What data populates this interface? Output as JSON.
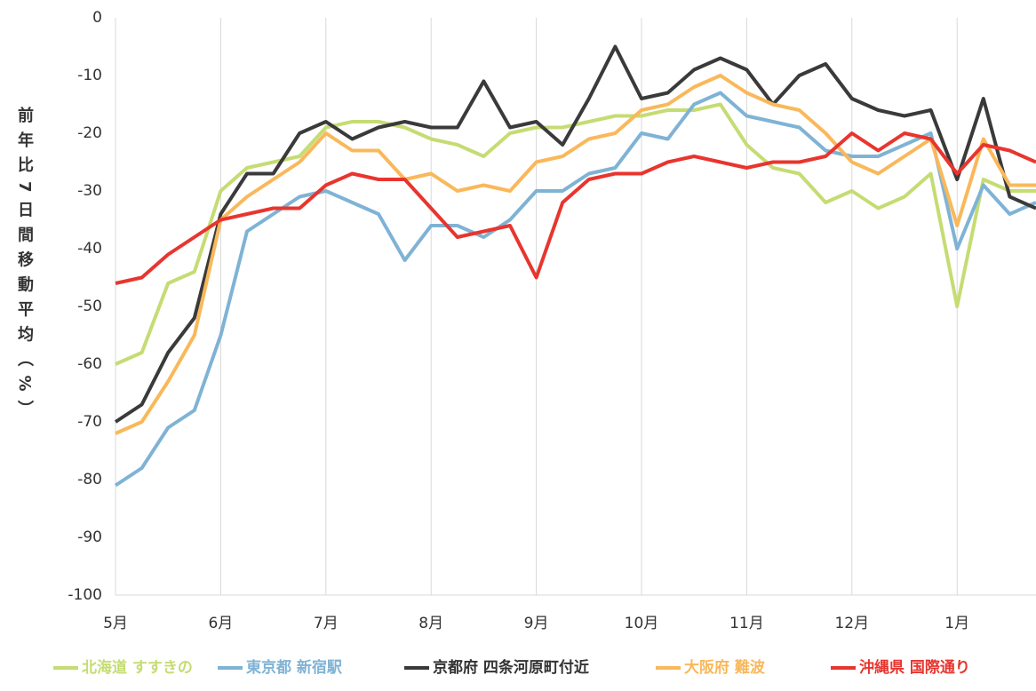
{
  "chart_data": {
    "type": "line",
    "y_label": "前年比7日間移動平均（%）",
    "categories": [
      "5月",
      null,
      null,
      null,
      "6月",
      null,
      null,
      null,
      "7月",
      null,
      null,
      null,
      "8月",
      null,
      null,
      null,
      "9月",
      null,
      null,
      null,
      "10月",
      null,
      null,
      null,
      "11月",
      null,
      null,
      null,
      "12月",
      null,
      null,
      null,
      "1月",
      null,
      null,
      null
    ],
    "series": [
      {
        "name": "北海道 すすきの",
        "color": "#c5dc73",
        "values": [
          -60,
          -58,
          -46,
          -44,
          -30,
          -26,
          -25,
          -24,
          -19,
          -18,
          -18,
          -19,
          -21,
          -22,
          -24,
          -20,
          -19,
          -19,
          -18,
          -17,
          -17,
          -16,
          -16,
          -15,
          -22,
          -26,
          -27,
          -32,
          -30,
          -33,
          -31,
          -27,
          -50,
          -28,
          -30,
          -30
        ]
      },
      {
        "name": "東京都 新宿駅",
        "color": "#7fb3d5",
        "values": [
          -81,
          -78,
          -71,
          -68,
          -55,
          -37,
          -34,
          -31,
          -30,
          -32,
          -34,
          -42,
          -36,
          -36,
          -38,
          -35,
          -30,
          -30,
          -27,
          -26,
          -20,
          -21,
          -15,
          -13,
          -17,
          -18,
          -19,
          -23,
          -24,
          -24,
          -22,
          -20,
          -40,
          -29,
          -34,
          -32
        ]
      },
      {
        "name": "京都府 四条河原町付近",
        "color": "#3a3a3a",
        "values": [
          -70,
          -67,
          -58,
          -52,
          -34,
          -27,
          -27,
          -20,
          -18,
          -21,
          -19,
          -18,
          -19,
          -19,
          -11,
          -19,
          -18,
          -22,
          -14,
          -5,
          -14,
          -13,
          -9,
          -7,
          -9,
          -15,
          -10,
          -8,
          -14,
          -16,
          -17,
          -16,
          -28,
          -14,
          -31,
          -33
        ]
      },
      {
        "name": "大阪府 難波",
        "color": "#f9b85a",
        "values": [
          -72,
          -70,
          -63,
          -55,
          -35,
          -31,
          -28,
          -25,
          -20,
          -23,
          -23,
          -28,
          -27,
          -30,
          -29,
          -30,
          -25,
          -24,
          -21,
          -20,
          -16,
          -15,
          -12,
          -10,
          -13,
          -15,
          -16,
          -20,
          -25,
          -27,
          -24,
          -21,
          -36,
          -21,
          -29,
          -29
        ]
      },
      {
        "name": "沖縄県 国際通り",
        "color": "#e8352e",
        "values": [
          -46,
          -45,
          -41,
          -38,
          -35,
          -34,
          -33,
          -33,
          -29,
          -27,
          -28,
          -28,
          -33,
          -38,
          -37,
          -36,
          -45,
          -32,
          -28,
          -27,
          -27,
          -25,
          -24,
          -25,
          -26,
          -25,
          -25,
          -24,
          -20,
          -23,
          -20,
          -21,
          -27,
          -22,
          -23,
          -25
        ]
      }
    ],
    "ylim": [
      -100,
      0
    ],
    "yticks": [
      0,
      -10,
      -20,
      -30,
      -40,
      -50,
      -60,
      -70,
      -80,
      -90,
      -100
    ],
    "grid": "x",
    "legend": "bottom"
  }
}
